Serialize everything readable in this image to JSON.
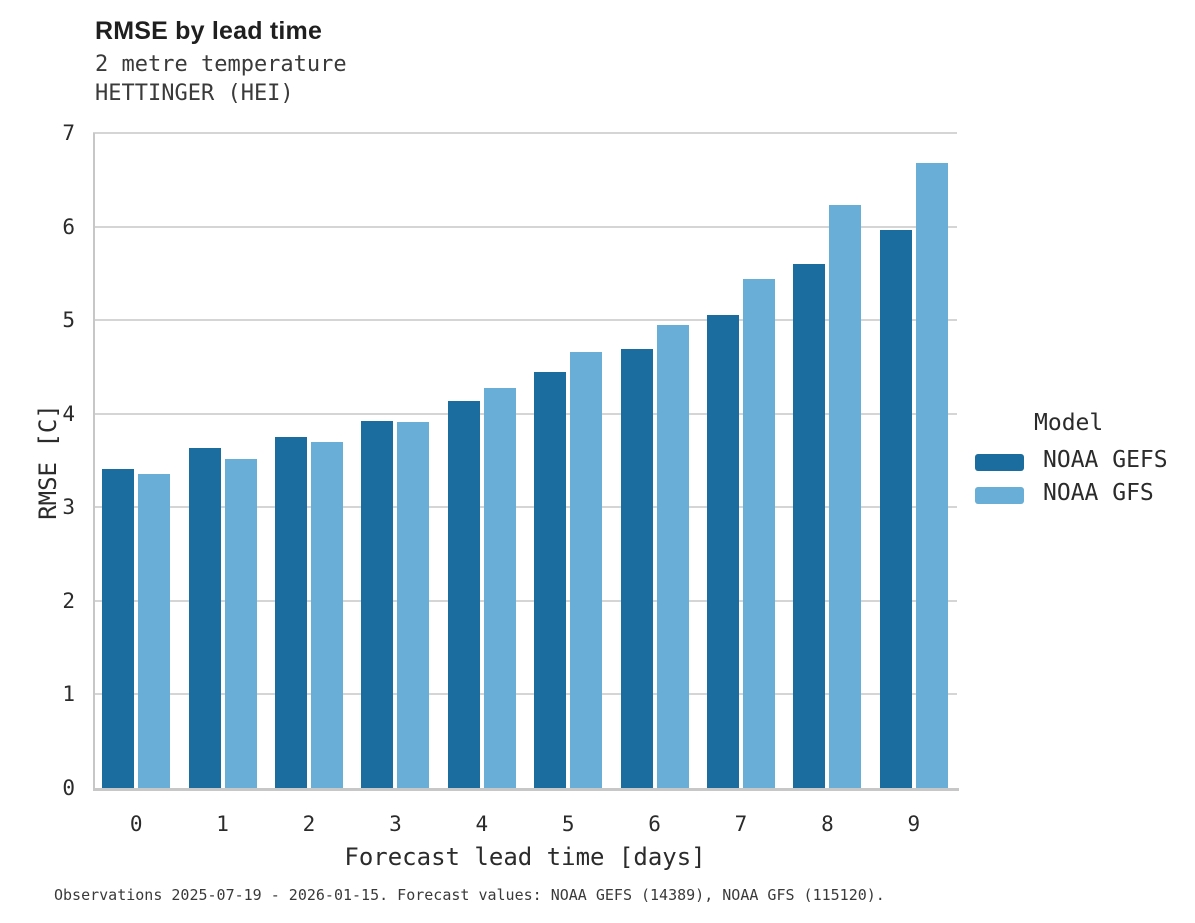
{
  "header": {
    "title": "RMSE by lead time",
    "subtitle_line1": "2 metre temperature",
    "subtitle_line2": "HETTINGER (HEI)"
  },
  "legend": {
    "title": "Model",
    "entries": [
      {
        "label": "NOAA GEFS",
        "color": "#1a6d9e"
      },
      {
        "label": "NOAA GFS",
        "color": "#69aed6"
      }
    ]
  },
  "footer": {
    "text": "Observations 2025-07-19 - 2026-01-15. Forecast values: NOAA GEFS (14389), NOAA GFS (115120)."
  },
  "colors": {
    "gefs": "#1a6d9e",
    "gfs": "#69aed6",
    "grid": "#d5d5d5",
    "axis_spine": "#c7c7c7",
    "text": "#2b2b2b"
  },
  "chart_data": {
    "type": "bar",
    "title": "RMSE by lead time",
    "subtitle": [
      "2 metre temperature",
      "HETTINGER (HEI)"
    ],
    "xlabel": "Forecast lead time [days]",
    "ylabel": "RMSE [C]",
    "categories": [
      "0",
      "1",
      "2",
      "3",
      "4",
      "5",
      "6",
      "7",
      "8",
      "9"
    ],
    "series": [
      {
        "name": "NOAA GEFS",
        "color": "#1a6d9e",
        "values": [
          3.41,
          3.63,
          3.75,
          3.92,
          4.14,
          4.45,
          4.69,
          5.05,
          5.6,
          5.96
        ]
      },
      {
        "name": "NOAA GFS",
        "color": "#69aed6",
        "values": [
          3.36,
          3.52,
          3.7,
          3.91,
          4.27,
          4.66,
          4.95,
          5.44,
          6.23,
          6.68
        ]
      }
    ],
    "ylim": [
      0,
      7
    ],
    "yticks": [
      0,
      1,
      2,
      3,
      4,
      5,
      6,
      7
    ],
    "grid": true,
    "legend_position": "right",
    "footnote": "Observations 2025-07-19 - 2026-01-15. Forecast values: NOAA GEFS (14389), NOAA GFS (115120)."
  }
}
